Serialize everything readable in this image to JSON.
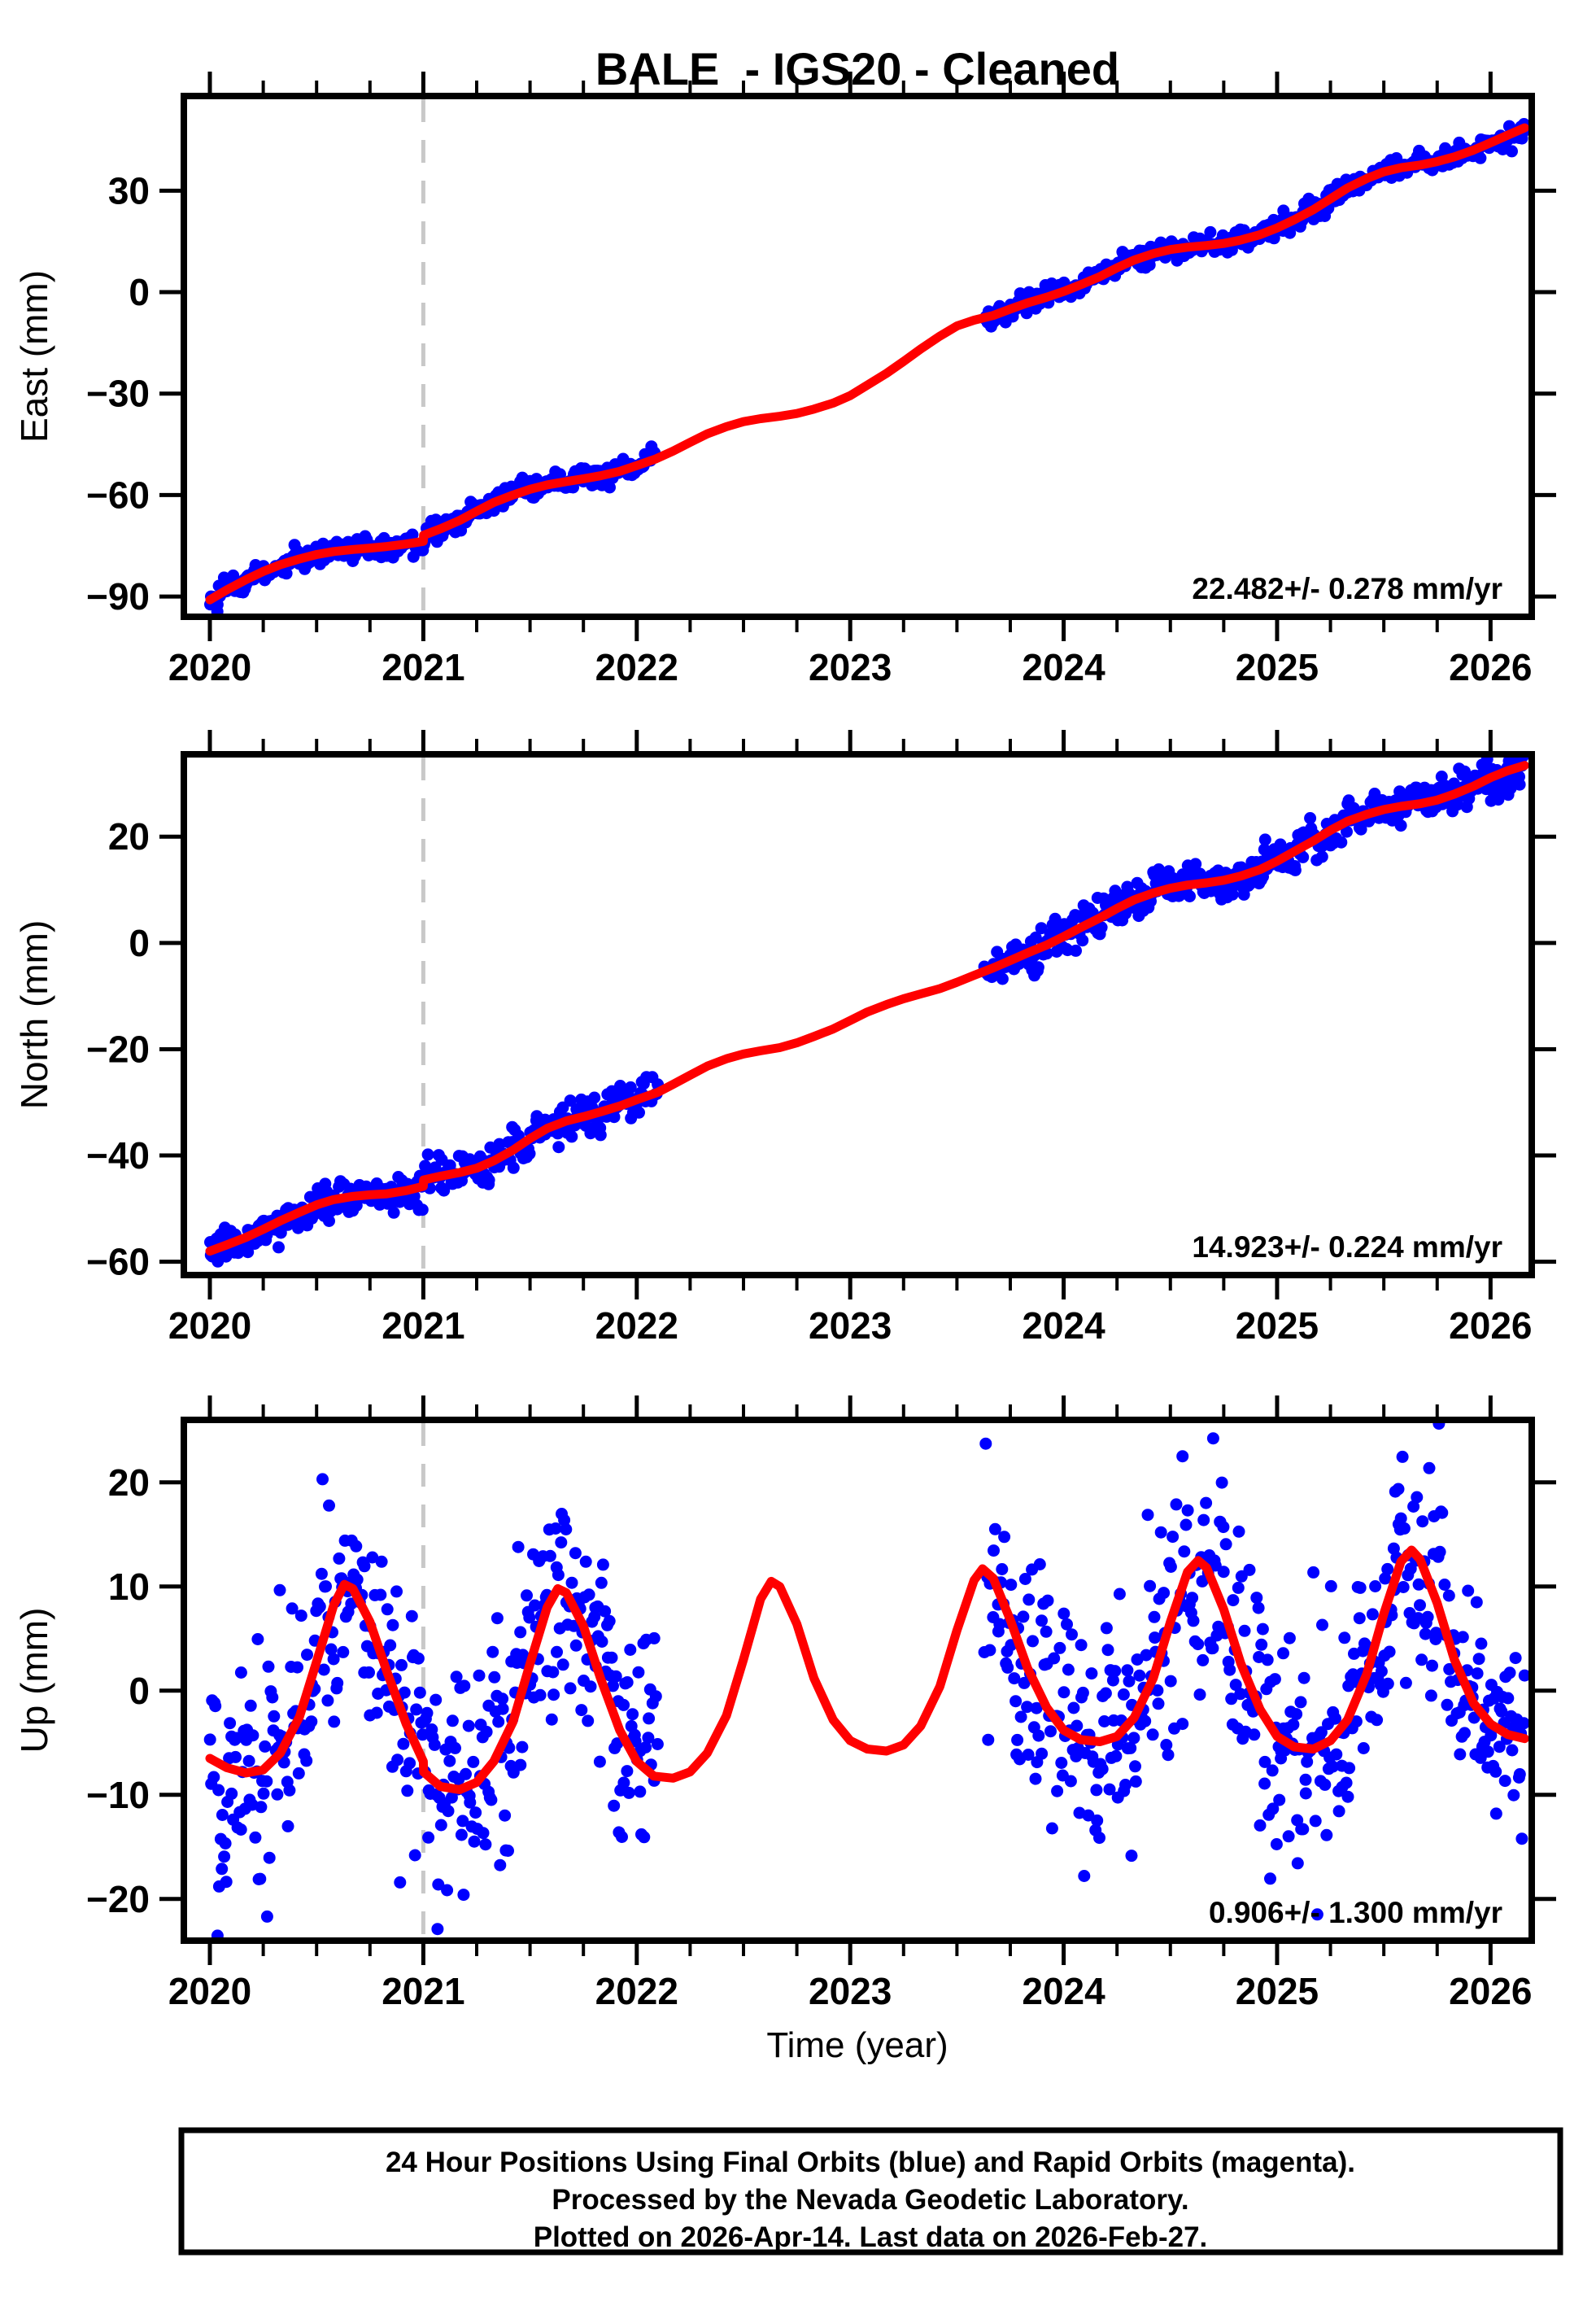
{
  "title": "BALE  - IGS20 - Cleaned",
  "station": "BALE",
  "reference_frame": "IGS20",
  "solution_status": "Cleaned",
  "xlabel": "Time (year)",
  "x_axis": {
    "ticks": [
      2020,
      2021,
      2022,
      2023,
      2024,
      2025,
      2026
    ],
    "minor_step": 0.25,
    "range": [
      2019.878,
      2026.193
    ],
    "event_line_year": 2021
  },
  "footer": {
    "lines": [
      "24 Hour Positions Using Final Orbits (blue) and Rapid Orbits (magenta).",
      "Processed by the Nevada Geodetic Laboratory.",
      "Plotted on 2026-Apr-14. Last data on 2026-Feb-27."
    ]
  },
  "colors": {
    "final_orbit_points": "#0000ff",
    "model_line": "#ff0000",
    "event_line": "#c8c8c8",
    "frame": "#000000"
  },
  "chart_data": [
    {
      "type": "scatter",
      "component": "East",
      "ylabel": "East (mm)",
      "rate_label": "22.482+/- 0.278 mm/yr",
      "rate_mm_per_yr": 22.482,
      "rate_sigma_mm_per_yr": 0.278,
      "yticks": [
        30,
        0,
        -30,
        -60,
        -90
      ],
      "ylim": [
        -96,
        58
      ],
      "scatter_sigma_mm": 1.5,
      "sample_step_years": 0.0055,
      "data_segments": [
        [
          2020.0,
          2022.09
        ],
        [
          2023.63,
          2026.16
        ]
      ],
      "model_line": [
        [
          2020.0,
          -91.0
        ],
        [
          2020.08,
          -88.0
        ],
        [
          2020.17,
          -85.0
        ],
        [
          2020.25,
          -82.6
        ],
        [
          2020.33,
          -80.6
        ],
        [
          2020.42,
          -78.9
        ],
        [
          2020.5,
          -77.6
        ],
        [
          2020.58,
          -76.7
        ],
        [
          2020.67,
          -76.1
        ],
        [
          2020.75,
          -75.7
        ],
        [
          2020.83,
          -75.2
        ],
        [
          2020.92,
          -74.5
        ],
        [
          2021.0,
          -73.7
        ],
        [
          2021.001,
          -71.9
        ],
        [
          2021.08,
          -70.0
        ],
        [
          2021.17,
          -67.5
        ],
        [
          2021.25,
          -64.8
        ],
        [
          2021.33,
          -62.2
        ],
        [
          2021.42,
          -60.0
        ],
        [
          2021.5,
          -58.3
        ],
        [
          2021.58,
          -57.0
        ],
        [
          2021.67,
          -56.0
        ],
        [
          2021.75,
          -55.2
        ],
        [
          2021.83,
          -54.3
        ],
        [
          2021.92,
          -53.0
        ],
        [
          2022.0,
          -51.3
        ],
        [
          2022.09,
          -49.3
        ],
        [
          2022.17,
          -47.0
        ],
        [
          2022.25,
          -44.4
        ],
        [
          2022.33,
          -41.9
        ],
        [
          2022.42,
          -39.8
        ],
        [
          2022.5,
          -38.3
        ],
        [
          2022.58,
          -37.4
        ],
        [
          2022.67,
          -36.7
        ],
        [
          2022.75,
          -35.9
        ],
        [
          2022.83,
          -34.6
        ],
        [
          2022.92,
          -32.8
        ],
        [
          2023.0,
          -30.6
        ],
        [
          2023.08,
          -27.5
        ],
        [
          2023.17,
          -24.0
        ],
        [
          2023.25,
          -20.5
        ],
        [
          2023.33,
          -16.8
        ],
        [
          2023.42,
          -13.0
        ],
        [
          2023.5,
          -10.0
        ],
        [
          2023.58,
          -8.3
        ],
        [
          2023.67,
          -6.9
        ],
        [
          2023.75,
          -5.0
        ],
        [
          2023.83,
          -3.2
        ],
        [
          2023.92,
          -1.5
        ],
        [
          2024.0,
          0.2
        ],
        [
          2024.08,
          2.2
        ],
        [
          2024.17,
          4.6
        ],
        [
          2024.25,
          7.2
        ],
        [
          2024.33,
          9.5
        ],
        [
          2024.42,
          11.4
        ],
        [
          2024.5,
          12.6
        ],
        [
          2024.58,
          13.3
        ],
        [
          2024.67,
          13.8
        ],
        [
          2024.75,
          14.4
        ],
        [
          2024.83,
          15.4
        ],
        [
          2024.92,
          17.0
        ],
        [
          2025.0,
          19.0
        ],
        [
          2025.08,
          21.4
        ],
        [
          2025.17,
          24.4
        ],
        [
          2025.25,
          27.6
        ],
        [
          2025.33,
          30.8
        ],
        [
          2025.42,
          33.6
        ],
        [
          2025.5,
          35.6
        ],
        [
          2025.58,
          36.8
        ],
        [
          2025.67,
          37.6
        ],
        [
          2025.75,
          38.6
        ],
        [
          2025.83,
          40.0
        ],
        [
          2025.92,
          42.0
        ],
        [
          2026.0,
          44.2
        ],
        [
          2026.08,
          46.4
        ],
        [
          2026.16,
          48.6
        ]
      ]
    },
    {
      "type": "scatter",
      "component": "North",
      "ylabel": "North (mm)",
      "rate_label": "14.923+/- 0.224 mm/yr",
      "rate_mm_per_yr": 14.923,
      "rate_sigma_mm_per_yr": 0.224,
      "yticks": [
        20,
        0,
        -20,
        -40,
        -60
      ],
      "ylim": [
        -62.5,
        35.5
      ],
      "scatter_sigma_mm": 1.7,
      "sample_step_years": 0.0055,
      "data_segments": [
        [
          2020.0,
          2022.1
        ],
        [
          2023.63,
          2026.16
        ]
      ],
      "model_line": [
        [
          2020.0,
          -58.0
        ],
        [
          2020.08,
          -56.8
        ],
        [
          2020.17,
          -55.4
        ],
        [
          2020.25,
          -53.9
        ],
        [
          2020.33,
          -52.3
        ],
        [
          2020.42,
          -50.7
        ],
        [
          2020.5,
          -49.3
        ],
        [
          2020.58,
          -48.3
        ],
        [
          2020.67,
          -47.7
        ],
        [
          2020.75,
          -47.4
        ],
        [
          2020.83,
          -47.2
        ],
        [
          2020.92,
          -46.6
        ],
        [
          2021.0,
          -45.8
        ],
        [
          2021.001,
          -44.6
        ],
        [
          2021.08,
          -43.9
        ],
        [
          2021.17,
          -43.2
        ],
        [
          2021.25,
          -42.4
        ],
        [
          2021.33,
          -41.0
        ],
        [
          2021.42,
          -39.0
        ],
        [
          2021.5,
          -36.8
        ],
        [
          2021.58,
          -34.9
        ],
        [
          2021.67,
          -33.5
        ],
        [
          2021.75,
          -32.7
        ],
        [
          2021.83,
          -31.8
        ],
        [
          2021.92,
          -30.7
        ],
        [
          2022.0,
          -29.5
        ],
        [
          2022.1,
          -28.1
        ],
        [
          2022.17,
          -26.6
        ],
        [
          2022.25,
          -24.9
        ],
        [
          2022.33,
          -23.2
        ],
        [
          2022.42,
          -21.8
        ],
        [
          2022.5,
          -20.9
        ],
        [
          2022.58,
          -20.3
        ],
        [
          2022.67,
          -19.7
        ],
        [
          2022.75,
          -18.8
        ],
        [
          2022.83,
          -17.6
        ],
        [
          2022.92,
          -16.2
        ],
        [
          2023.0,
          -14.6
        ],
        [
          2023.08,
          -13.0
        ],
        [
          2023.17,
          -11.6
        ],
        [
          2023.25,
          -10.5
        ],
        [
          2023.33,
          -9.6
        ],
        [
          2023.42,
          -8.6
        ],
        [
          2023.5,
          -7.4
        ],
        [
          2023.58,
          -6.1
        ],
        [
          2023.67,
          -4.7
        ],
        [
          2023.75,
          -3.3
        ],
        [
          2023.83,
          -1.9
        ],
        [
          2023.92,
          -0.4
        ],
        [
          2024.0,
          1.2
        ],
        [
          2024.08,
          2.9
        ],
        [
          2024.17,
          4.7
        ],
        [
          2024.25,
          6.5
        ],
        [
          2024.33,
          8.1
        ],
        [
          2024.42,
          9.4
        ],
        [
          2024.5,
          10.3
        ],
        [
          2024.58,
          10.9
        ],
        [
          2024.67,
          11.3
        ],
        [
          2024.75,
          11.8
        ],
        [
          2024.83,
          12.6
        ],
        [
          2024.92,
          13.8
        ],
        [
          2025.0,
          15.4
        ],
        [
          2025.08,
          17.2
        ],
        [
          2025.17,
          19.2
        ],
        [
          2025.25,
          21.2
        ],
        [
          2025.33,
          22.9
        ],
        [
          2025.42,
          24.2
        ],
        [
          2025.5,
          25.1
        ],
        [
          2025.58,
          25.7
        ],
        [
          2025.67,
          26.2
        ],
        [
          2025.75,
          26.9
        ],
        [
          2025.83,
          28.0
        ],
        [
          2025.92,
          29.5
        ],
        [
          2026.0,
          31.1
        ],
        [
          2026.08,
          32.4
        ],
        [
          2026.16,
          33.4
        ]
      ]
    },
    {
      "type": "scatter",
      "component": "Up",
      "ylabel": "Up (mm)",
      "rate_label": "0.906+/- 1.300 mm/yr",
      "rate_mm_per_yr": 0.906,
      "rate_sigma_mm_per_yr": 1.3,
      "yticks": [
        20,
        10,
        0,
        -10,
        -20
      ],
      "ylim": [
        -24,
        26
      ],
      "scatter_sigma_mm": 5.3,
      "sample_step_years": 0.0055,
      "data_segments": [
        [
          2020.0,
          2022.1
        ],
        [
          2023.63,
          2026.16
        ]
      ],
      "model_line": [
        [
          2020.0,
          -6.5
        ],
        [
          2020.08,
          -7.4
        ],
        [
          2020.17,
          -7.9
        ],
        [
          2020.25,
          -7.6
        ],
        [
          2020.33,
          -6.0
        ],
        [
          2020.42,
          -2.5
        ],
        [
          2020.5,
          2.8
        ],
        [
          2020.58,
          8.2
        ],
        [
          2020.63,
          10.2
        ],
        [
          2020.67,
          9.8
        ],
        [
          2020.75,
          6.6
        ],
        [
          2020.83,
          1.8
        ],
        [
          2020.92,
          -3.2
        ],
        [
          2021.0,
          -6.8
        ],
        [
          2021.001,
          -7.8
        ],
        [
          2021.08,
          -9.2
        ],
        [
          2021.17,
          -9.5
        ],
        [
          2021.25,
          -8.8
        ],
        [
          2021.33,
          -6.8
        ],
        [
          2021.42,
          -3.0
        ],
        [
          2021.5,
          2.6
        ],
        [
          2021.58,
          8.0
        ],
        [
          2021.63,
          9.8
        ],
        [
          2021.67,
          9.4
        ],
        [
          2021.75,
          6.2
        ],
        [
          2021.83,
          1.2
        ],
        [
          2021.92,
          -3.8
        ],
        [
          2022.0,
          -6.8
        ],
        [
          2022.08,
          -8.2
        ],
        [
          2022.17,
          -8.4
        ],
        [
          2022.25,
          -7.8
        ],
        [
          2022.33,
          -6.0
        ],
        [
          2022.42,
          -2.4
        ],
        [
          2022.5,
          3.0
        ],
        [
          2022.58,
          8.8
        ],
        [
          2022.63,
          10.5
        ],
        [
          2022.67,
          10.0
        ],
        [
          2022.75,
          6.4
        ],
        [
          2022.83,
          1.2
        ],
        [
          2022.92,
          -2.8
        ],
        [
          2023.0,
          -4.8
        ],
        [
          2023.08,
          -5.6
        ],
        [
          2023.17,
          -5.8
        ],
        [
          2023.25,
          -5.2
        ],
        [
          2023.33,
          -3.4
        ],
        [
          2023.42,
          0.4
        ],
        [
          2023.5,
          5.8
        ],
        [
          2023.58,
          10.6
        ],
        [
          2023.62,
          11.7
        ],
        [
          2023.67,
          10.8
        ],
        [
          2023.75,
          6.8
        ],
        [
          2023.83,
          2.2
        ],
        [
          2023.92,
          -1.6
        ],
        [
          2024.0,
          -3.8
        ],
        [
          2024.08,
          -4.7
        ],
        [
          2024.17,
          -4.9
        ],
        [
          2024.25,
          -4.4
        ],
        [
          2024.33,
          -2.6
        ],
        [
          2024.42,
          1.2
        ],
        [
          2024.5,
          6.6
        ],
        [
          2024.58,
          11.4
        ],
        [
          2024.63,
          12.5
        ],
        [
          2024.67,
          11.8
        ],
        [
          2024.75,
          7.8
        ],
        [
          2024.83,
          2.6
        ],
        [
          2024.92,
          -1.8
        ],
        [
          2025.0,
          -4.4
        ],
        [
          2025.08,
          -5.4
        ],
        [
          2025.17,
          -5.6
        ],
        [
          2025.25,
          -4.8
        ],
        [
          2025.33,
          -2.8
        ],
        [
          2025.42,
          1.6
        ],
        [
          2025.5,
          7.4
        ],
        [
          2025.58,
          12.4
        ],
        [
          2025.63,
          13.5
        ],
        [
          2025.67,
          12.6
        ],
        [
          2025.75,
          8.4
        ],
        [
          2025.83,
          3.0
        ],
        [
          2025.92,
          -1.2
        ],
        [
          2026.0,
          -3.2
        ],
        [
          2026.08,
          -4.2
        ],
        [
          2026.16,
          -4.6
        ]
      ]
    }
  ]
}
